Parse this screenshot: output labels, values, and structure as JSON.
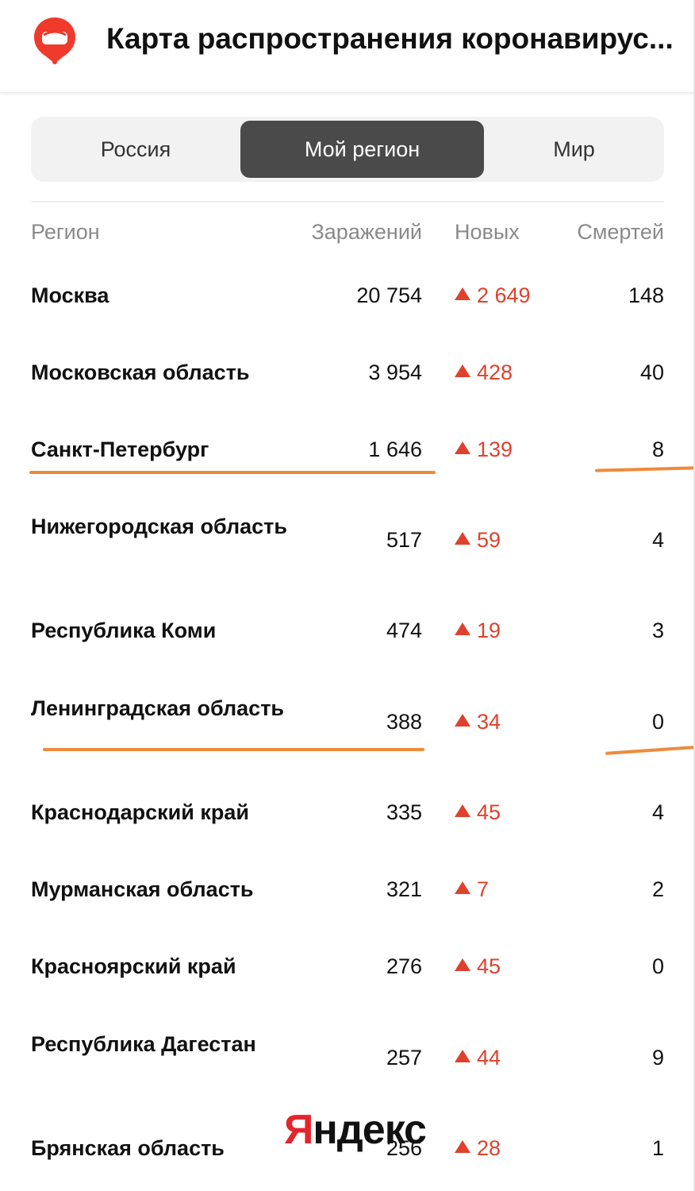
{
  "header": {
    "title": "Карта распространения коронавирус...",
    "logo_icon": "yandex-virus-map-pin-icon"
  },
  "tabs": [
    {
      "label": "Россия",
      "selected": false
    },
    {
      "label": "Мой регион",
      "selected": true
    },
    {
      "label": "Мир",
      "selected": false
    }
  ],
  "table": {
    "columns": [
      "Регион",
      "Заражений",
      "Новых",
      "Смертей"
    ],
    "rows": [
      {
        "region": "Москва",
        "infected": "20 754",
        "new": "2 649",
        "deaths": "148"
      },
      {
        "region": "Московская область",
        "infected": "3 954",
        "new": "428",
        "deaths": "40"
      },
      {
        "region": "Санкт-Петербург",
        "infected": "1 646",
        "new": "139",
        "deaths": "8"
      },
      {
        "region": "Нижегородская область",
        "infected": "517",
        "new": "59",
        "deaths": "4"
      },
      {
        "region": "Республика Коми",
        "infected": "474",
        "new": "19",
        "deaths": "3"
      },
      {
        "region": "Ленинградская область",
        "infected": "388",
        "new": "34",
        "deaths": "0"
      },
      {
        "region": "Краснодарский край",
        "infected": "335",
        "new": "45",
        "deaths": "4"
      },
      {
        "region": "Мурманская область",
        "infected": "321",
        "new": "7",
        "deaths": "2"
      },
      {
        "region": "Красноярский край",
        "infected": "276",
        "new": "45",
        "deaths": "0"
      },
      {
        "region": "Республика Дагестан",
        "infected": "257",
        "new": "44",
        "deaths": "9"
      },
      {
        "region": "Брянская область",
        "infected": "256",
        "new": "28",
        "deaths": "1"
      }
    ]
  },
  "watermark": {
    "text": "Яндекс"
  },
  "colors": {
    "accent_red": "#e0412c",
    "selected_tab_bg": "#4a4a4a",
    "highlight_underline": "#ef8a3b"
  }
}
